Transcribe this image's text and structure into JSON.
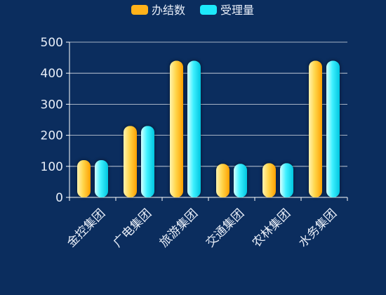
{
  "chart_data": {
    "type": "bar",
    "title": "",
    "xlabel": "",
    "ylabel": "",
    "ylim": [
      0,
      500
    ],
    "yticks": [
      0,
      100,
      200,
      300,
      400,
      500
    ],
    "grid": true,
    "legend_position": "top-center",
    "categories": [
      "金控集团",
      "广电集团",
      "旅游集团",
      "交通集团",
      "农林集团",
      "水务集团"
    ],
    "series": [
      {
        "name": "办结数",
        "color": "#ffb21a",
        "gradient": [
          "#fff3b0",
          "#ffd54a",
          "#ffa000"
        ],
        "values": [
          120,
          230,
          440,
          108,
          110,
          440
        ]
      },
      {
        "name": "受理量",
        "color": "#1de9fb",
        "gradient": [
          "#d8ffff",
          "#3ff0ff",
          "#00c6e0"
        ],
        "values": [
          120,
          230,
          440,
          108,
          110,
          440
        ]
      }
    ]
  },
  "colors": {
    "background": "#0b2d5e",
    "axis": "#ffffff",
    "grid": "#ffffff",
    "text": "#e8eef8"
  }
}
